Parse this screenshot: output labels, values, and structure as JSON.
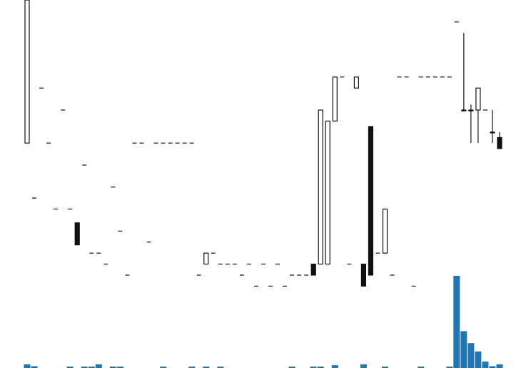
{
  "chart_data": {
    "type": "candlestick",
    "title": "",
    "xlabel": "",
    "ylabel": "",
    "grid": false,
    "legend": "none",
    "colors": {
      "up": "#ffffff",
      "down": "#111111",
      "outline": "#111111",
      "volume": "#1f77b4"
    },
    "price_range": [
      0,
      100
    ],
    "volume_range": [
      0,
      100
    ],
    "candles": [
      {
        "o": 48.0,
        "h": 100.0,
        "l": 48.0,
        "c": 100.0,
        "v": 4
      },
      {
        "o": 28.0,
        "h": 28.0,
        "l": 28.0,
        "c": 28.0,
        "v": 2
      },
      {
        "o": 68.0,
        "h": 68.0,
        "l": 68.0,
        "c": 68.0,
        "v": 0
      },
      {
        "o": 48.0,
        "h": 48.0,
        "l": 48.0,
        "c": 48.0,
        "v": 0
      },
      {
        "o": 24.0,
        "h": 24.0,
        "l": 24.0,
        "c": 24.0,
        "v": 0
      },
      {
        "o": 60.0,
        "h": 60.0,
        "l": 60.0,
        "c": 60.0,
        "v": 0
      },
      {
        "o": 24.0,
        "h": 24.0,
        "l": 24.0,
        "c": 24.0,
        "v": 1
      },
      {
        "o": 19.0,
        "h": 19.0,
        "l": 11.0,
        "c": 11.0,
        "v": 0
      },
      {
        "o": 40.0,
        "h": 40.0,
        "l": 40.0,
        "c": 40.0,
        "v": 1
      },
      {
        "o": 8.0,
        "h": 8.0,
        "l": 8.0,
        "c": 8.0,
        "v": 1
      },
      {
        "o": 8.0,
        "h": 8.0,
        "l": 8.0,
        "c": 8.0,
        "v": 4
      },
      {
        "o": 4.0,
        "h": 4.0,
        "l": 4.0,
        "c": 4.0,
        "v": 0
      },
      {
        "o": 32.0,
        "h": 32.0,
        "l": 32.0,
        "c": 32.0,
        "v": 1
      },
      {
        "o": 16.0,
        "h": 16.0,
        "l": 16.0,
        "c": 16.0,
        "v": 1
      },
      {
        "o": 0,
        "h": 0,
        "l": 0,
        "c": 0,
        "v": 0
      },
      {
        "o": 48.0,
        "h": 48.0,
        "l": 48.0,
        "c": 48.0,
        "v": 0
      },
      {
        "o": 48.0,
        "h": 48.0,
        "l": 48.0,
        "c": 48.0,
        "v": 0
      },
      {
        "o": 12.0,
        "h": 12.0,
        "l": 12.0,
        "c": 12.0,
        "v": 0
      },
      {
        "o": 48.0,
        "h": 48.0,
        "l": 48.0,
        "c": 48.0,
        "v": 0
      },
      {
        "o": 48.0,
        "h": 48.0,
        "l": 48.0,
        "c": 48.0,
        "v": 1
      },
      {
        "o": 48.0,
        "h": 48.0,
        "l": 48.0,
        "c": 48.0,
        "v": 0
      },
      {
        "o": 48.0,
        "h": 48.0,
        "l": 48.0,
        "c": 48.0,
        "v": 0
      },
      {
        "o": 48.0,
        "h": 48.0,
        "l": 48.0,
        "c": 48.0,
        "v": 0
      },
      {
        "o": 48.0,
        "h": 48.0,
        "l": 48.0,
        "c": 48.0,
        "v": 1
      },
      {
        "o": 0,
        "h": 0,
        "l": 0,
        "c": 0,
        "v": 0
      },
      {
        "o": 4.0,
        "h": 8.0,
        "l": 4.0,
        "c": 8.0,
        "v": 1
      },
      {
        "o": 8.0,
        "h": 8.0,
        "l": 8.0,
        "c": 8.0,
        "v": 0
      },
      {
        "o": 4.0,
        "h": 4.0,
        "l": 4.0,
        "c": 4.0,
        "v": 1
      },
      {
        "o": 4.0,
        "h": 4.0,
        "l": 4.0,
        "c": 4.0,
        "v": 0
      },
      {
        "o": 4.0,
        "h": 4.0,
        "l": 4.0,
        "c": 4.0,
        "v": 0
      },
      {
        "o": 0.0,
        "h": 0.0,
        "l": 0.0,
        "c": 0.0,
        "v": 0
      },
      {
        "o": 4.0,
        "h": 4.0,
        "l": 4.0,
        "c": 4.0,
        "v": 0
      },
      {
        "o": -4.0,
        "h": -4.0,
        "l": -4.0,
        "c": -4.0,
        "v": 0
      },
      {
        "o": 4.0,
        "h": 4.0,
        "l": 4.0,
        "c": 4.0,
        "v": 0
      },
      {
        "o": -4.0,
        "h": -4.0,
        "l": -4.0,
        "c": -4.0,
        "v": 0
      },
      {
        "o": 4.0,
        "h": 4.0,
        "l": 4.0,
        "c": 4.0,
        "v": 0
      },
      {
        "o": -4.0,
        "h": -4.0,
        "l": -4.0,
        "c": -4.0,
        "v": 0
      },
      {
        "o": 0.0,
        "h": 0.0,
        "l": 0.0,
        "c": 0.0,
        "v": 1
      },
      {
        "o": 0.0,
        "h": 0.0,
        "l": 0.0,
        "c": 0.0,
        "v": 0
      },
      {
        "o": 0.0,
        "h": 0.0,
        "l": 0.0,
        "c": 0.0,
        "v": 0
      },
      {
        "o": 4.0,
        "h": 4.0,
        "l": 0.0,
        "c": 0.0,
        "v": 1
      },
      {
        "o": 4.0,
        "h": 60.0,
        "l": 4.0,
        "c": 60.0,
        "v": 1
      },
      {
        "o": 4.0,
        "h": 56.0,
        "l": 4.0,
        "c": 56.0,
        "v": 0
      },
      {
        "o": 56.0,
        "h": 72.0,
        "l": 56.0,
        "c": 72.0,
        "v": 3
      },
      {
        "o": 72.0,
        "h": 72.0,
        "l": 72.0,
        "c": 72.0,
        "v": 0
      },
      {
        "o": 4.0,
        "h": 4.0,
        "l": 4.0,
        "c": 4.0,
        "v": 0
      },
      {
        "o": 68.0,
        "h": 72.0,
        "l": 68.0,
        "c": 72.0,
        "v": 0
      },
      {
        "o": 4.0,
        "h": 4.0,
        "l": -4.0,
        "c": -4.0,
        "v": 4
      },
      {
        "o": 54.0,
        "h": 54.0,
        "l": 0.0,
        "c": 0.0,
        "v": 0
      },
      {
        "o": 8.0,
        "h": 8.0,
        "l": 8.0,
        "c": 8.0,
        "v": 0
      },
      {
        "o": 8.0,
        "h": 24.0,
        "l": 8.0,
        "c": 24.0,
        "v": 1
      },
      {
        "o": 0,
        "h": 0,
        "l": 0,
        "c": 0,
        "v": 0
      },
      {
        "o": 72.0,
        "h": 72.0,
        "l": 72.0,
        "c": 72.0,
        "v": 0
      },
      {
        "o": 72.0,
        "h": 72.0,
        "l": 72.0,
        "c": 72.0,
        "v": 0
      },
      {
        "o": -4.0,
        "h": -4.0,
        "l": -4.0,
        "c": -4.0,
        "v": 0
      },
      {
        "o": 72.0,
        "h": 72.0,
        "l": 72.0,
        "c": 72.0,
        "v": 1
      },
      {
        "o": 72.0,
        "h": 72.0,
        "l": 72.0,
        "c": 72.0,
        "v": 0
      },
      {
        "o": 72.0,
        "h": 72.0,
        "l": 72.0,
        "c": 72.0,
        "v": 0
      },
      {
        "o": 72.0,
        "h": 72.0,
        "l": 72.0,
        "c": 72.0,
        "v": 0
      },
      {
        "o": 72.0,
        "h": 72.0,
        "l": 72.0,
        "c": 72.0,
        "v": 1
      },
      {
        "o": 92.0,
        "h": 92.0,
        "l": 92.0,
        "c": 92.0,
        "v": 100
      },
      {
        "o": 60.0,
        "h": 88.0,
        "l": 60.0,
        "c": 60.0,
        "v": 40
      },
      {
        "o": 60.0,
        "h": 62.0,
        "l": 48.0,
        "c": 60.0,
        "v": 27
      },
      {
        "o": 60.0,
        "h": 68.0,
        "l": 48.0,
        "c": 68.0,
        "v": 18
      },
      {
        "o": 60.0,
        "h": 60.0,
        "l": 60.0,
        "c": 60.0,
        "v": 7
      },
      {
        "o": 52.0,
        "h": 60.0,
        "l": 48.0,
        "c": 52.0,
        "v": 2
      },
      {
        "o": 50.0,
        "h": 52.0,
        "l": 46.0,
        "c": 46.0,
        "v": 4
      }
    ]
  }
}
